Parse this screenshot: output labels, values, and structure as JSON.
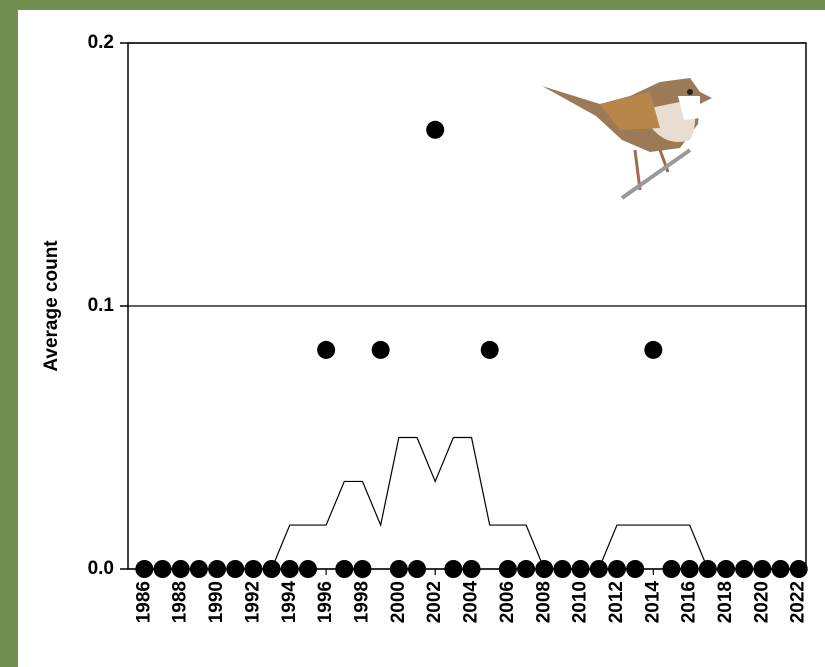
{
  "chart_data": {
    "type": "scatter",
    "y_label": "Average count",
    "x": [
      1986,
      1987,
      1988,
      1989,
      1990,
      1991,
      1992,
      1993,
      1994,
      1995,
      1996,
      1997,
      1998,
      1999,
      2000,
      2001,
      2002,
      2003,
      2004,
      2005,
      2006,
      2007,
      2008,
      2009,
      2010,
      2011,
      2012,
      2013,
      2014,
      2015,
      2016,
      2017,
      2018,
      2019,
      2020,
      2021,
      2022
    ],
    "series": [
      {
        "type": "scatter",
        "color": "#000000",
        "values": [
          0,
          0,
          0,
          0,
          0,
          0,
          0,
          0,
          0,
          0,
          0.0833,
          0,
          0,
          0.0833,
          0,
          0,
          0.167,
          0,
          0,
          0.0833,
          0,
          0,
          0,
          0,
          0,
          0,
          0,
          0,
          0.0833,
          0,
          0,
          0,
          0,
          0,
          0,
          0,
          0
        ]
      },
      {
        "type": "line",
        "color": "#000000",
        "values": [
          null,
          null,
          0,
          0,
          0,
          0,
          0,
          0,
          0.0167,
          0.0167,
          0.0167,
          0.0333,
          0.0333,
          0.0167,
          0.05,
          0.05,
          0.0333,
          0.05,
          0.05,
          0.0167,
          0.0167,
          0.0167,
          0,
          0,
          0,
          0,
          0.0167,
          0.0167,
          0.0167,
          0.0167,
          0.0167,
          0,
          0,
          0,
          0,
          null,
          null
        ]
      }
    ],
    "xlim": [
      1985.1,
      2022.4
    ],
    "xticks": [
      1986,
      1988,
      1990,
      1992,
      1994,
      1996,
      1998,
      2000,
      2002,
      2004,
      2006,
      2008,
      2010,
      2012,
      2014,
      2016,
      2018,
      2020,
      2022
    ],
    "ylim": [
      0,
      0.2
    ],
    "yticks": [
      {
        "value": 0,
        "label": "0.0"
      },
      0.1,
      0.2
    ],
    "grid": true
  }
}
